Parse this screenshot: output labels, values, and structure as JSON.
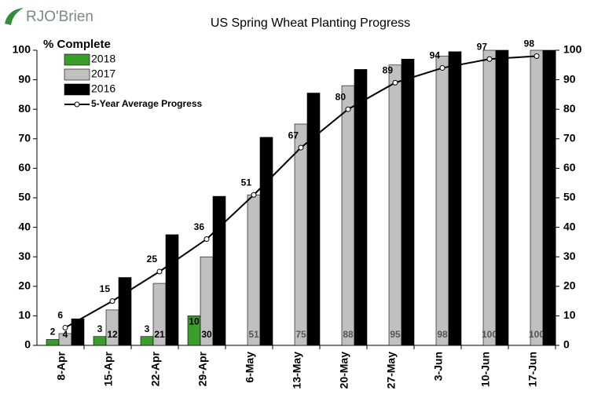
{
  "logo": "RJO'Brien",
  "chart_data": {
    "type": "bar",
    "title": "US Spring Wheat Planting Progress",
    "y_label": "% Complete",
    "categories": [
      "8-Apr",
      "15-Apr",
      "22-Apr",
      "29-Apr",
      "6-May",
      "13-May",
      "20-May",
      "27-May",
      "3-Jun",
      "10-Jun",
      "17-Jun"
    ],
    "series": [
      {
        "name": "2018",
        "color": "#3a9e2a",
        "values": [
          2,
          3,
          3,
          10,
          null,
          null,
          null,
          null,
          null,
          null,
          null
        ]
      },
      {
        "name": "2017",
        "color": "#c0c0c0",
        "values": [
          4,
          12,
          21,
          30,
          51,
          75,
          88,
          95,
          98,
          100,
          100
        ]
      },
      {
        "name": "2016",
        "color": "#000000",
        "values": [
          9,
          23,
          37.5,
          50.5,
          70.5,
          85.5,
          93.5,
          97,
          99.5,
          100,
          100
        ]
      },
      {
        "name": "5-Year Average Progress",
        "type": "line",
        "color": "#000000",
        "values": [
          6,
          15,
          25,
          36,
          51,
          67,
          80,
          89,
          94,
          97,
          98
        ]
      }
    ],
    "ylim": [
      0,
      100
    ],
    "yticks": [
      0,
      10,
      20,
      30,
      40,
      50,
      60,
      70,
      80,
      90,
      100
    ],
    "y2lim": [
      0,
      100
    ],
    "y2ticks": [
      0,
      10,
      20,
      30,
      40,
      50,
      60,
      70,
      80,
      90,
      100
    ]
  }
}
